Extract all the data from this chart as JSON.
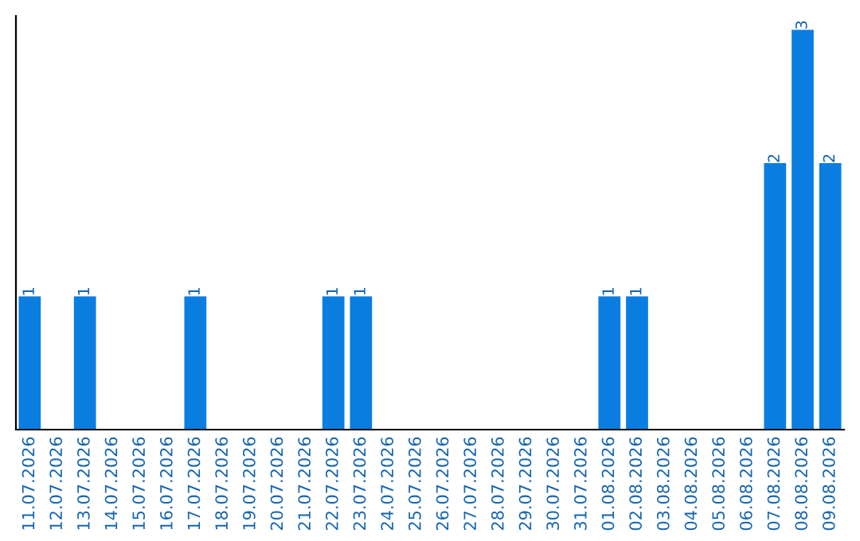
{
  "chart_data": {
    "type": "bar",
    "categories": [
      "11.07.2026",
      "12.07.2026",
      "13.07.2026",
      "14.07.2026",
      "15.07.2026",
      "16.07.2026",
      "17.07.2026",
      "18.07.2026",
      "19.07.2026",
      "20.07.2026",
      "21.07.2026",
      "22.07.2026",
      "23.07.2026",
      "24.07.2026",
      "25.07.2026",
      "26.07.2026",
      "27.07.2026",
      "28.07.2026",
      "29.07.2026",
      "30.07.2026",
      "31.07.2026",
      "01.08.2026",
      "02.08.2026",
      "03.08.2026",
      "04.08.2026",
      "05.08.2026",
      "06.08.2026",
      "07.08.2026",
      "08.08.2026",
      "09.08.2026"
    ],
    "values": [
      1,
      0,
      1,
      0,
      0,
      0,
      1,
      0,
      0,
      0,
      0,
      1,
      1,
      0,
      0,
      0,
      0,
      0,
      0,
      0,
      0,
      1,
      1,
      0,
      0,
      0,
      0,
      2,
      3,
      2
    ],
    "value_labels": [
      "1",
      null,
      "1",
      null,
      null,
      null,
      "1",
      null,
      null,
      null,
      null,
      "1",
      "1",
      null,
      null,
      null,
      null,
      null,
      null,
      null,
      null,
      "1",
      "1",
      null,
      null,
      null,
      null,
      "2",
      "3",
      "2"
    ],
    "color": "#0a7de0",
    "tick_labels": "x",
    "grid": false,
    "legend": false
  }
}
